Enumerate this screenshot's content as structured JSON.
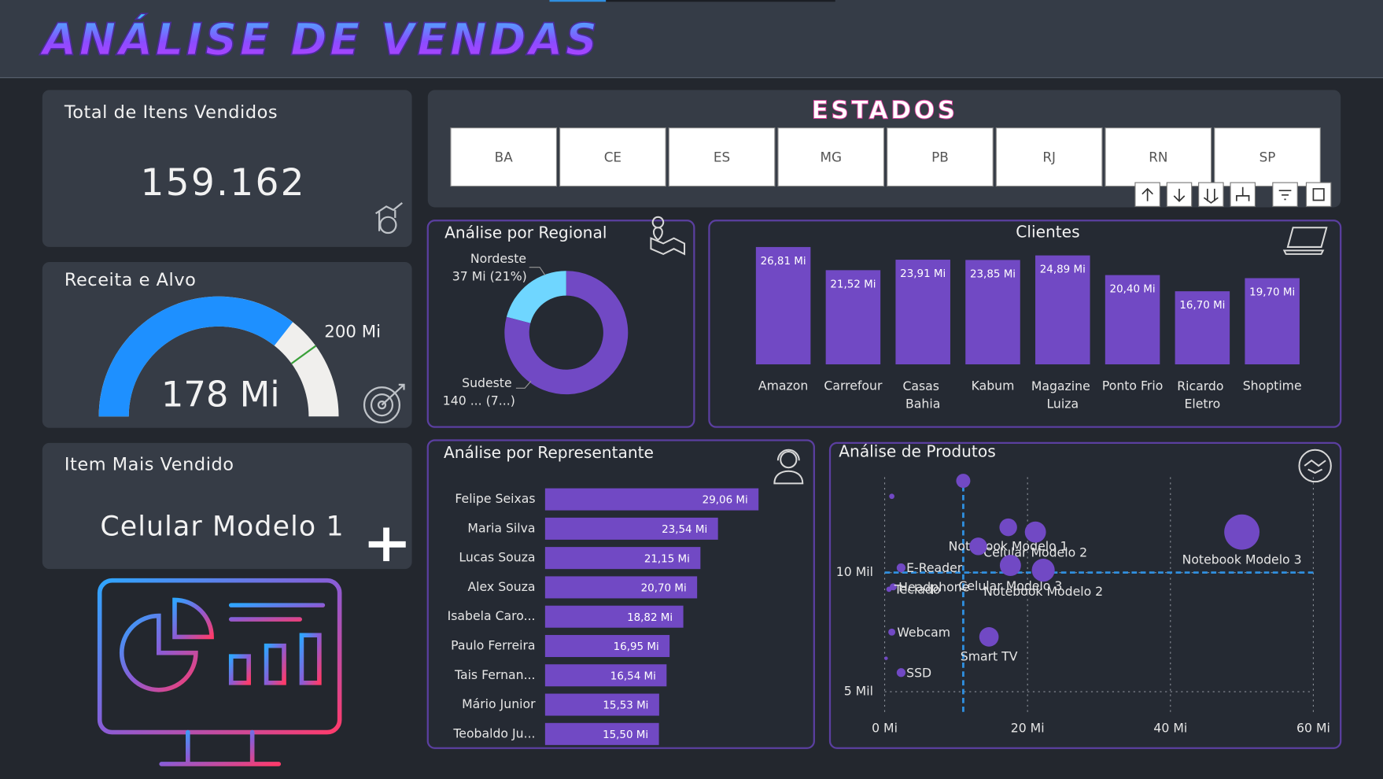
{
  "header": {
    "title": "ANÁLISE DE VENDAS"
  },
  "cards": {
    "total_items": {
      "label": "Total de Itens Vendidos",
      "value": "159.162"
    },
    "top_item": {
      "label": "Item Mais Vendido",
      "value": "Celular Modelo 1"
    }
  },
  "slicer": {
    "title": "ESTADOS",
    "items": [
      "BA",
      "CE",
      "ES",
      "MG",
      "PB",
      "RJ",
      "RN",
      "SP"
    ]
  },
  "chart_data": [
    {
      "type": "gauge",
      "title": "Receita e Alvo",
      "value": 178,
      "value_label": "178 Mi",
      "target": 200,
      "target_label": "200 Mi",
      "ylim": [
        0,
        250
      ],
      "color": "#1e90ff",
      "track_color": "#f0efed",
      "target_color": "#3aa03a"
    },
    {
      "type": "donut",
      "title": "Análise por Regional",
      "categories": [
        "Nordeste",
        "Sudeste"
      ],
      "values": [
        37,
        140
      ],
      "value_labels": [
        "37 Mi (21%)",
        "140 ... (7...)"
      ],
      "colors": [
        "#6fd6ff",
        "#7149c4"
      ]
    },
    {
      "type": "bar",
      "title": "Clientes",
      "categories": [
        "Amazon",
        "Carrefour",
        "Casas Bahia",
        "Kabum",
        "Magazine Luiza",
        "Ponto Frio",
        "Ricardo Eletro",
        "Shoptime"
      ],
      "values": [
        26.81,
        21.52,
        23.91,
        23.85,
        24.89,
        20.4,
        16.7,
        19.7
      ],
      "value_labels": [
        "26,81 Mi",
        "21,52 Mi",
        "23,91 Mi",
        "23,85 Mi",
        "24,89 Mi",
        "20,40 Mi",
        "16,70 Mi",
        "19,70 Mi"
      ],
      "color": "#7149c4"
    },
    {
      "type": "hbar",
      "title": "Análise por Representante",
      "categories": [
        "Felipe Seixas",
        "Maria Silva",
        "Lucas Souza",
        "Alex Souza",
        "Isabela Caro...",
        "Paulo Ferreira",
        "Tais Fernan...",
        "Mário Junior",
        "Teobaldo Ju..."
      ],
      "values": [
        29.06,
        23.54,
        21.15,
        20.7,
        18.82,
        16.95,
        16.54,
        15.53,
        15.5
      ],
      "value_labels": [
        "29,06 Mi",
        "23,54 Mi",
        "21,15 Mi",
        "20,70 Mi",
        "18,82 Mi",
        "16,95 Mi",
        "16,54 Mi",
        "15,53 Mi",
        "15,50 Mi"
      ],
      "color": "#7149c4"
    },
    {
      "type": "scatter",
      "title": "Análise de Produtos",
      "color": "#7149c4",
      "grid": true,
      "x": [
        11.0,
        1.0,
        17.3,
        21.1,
        50.0,
        13.1,
        17.6,
        22.2,
        2.3,
        1.2,
        0.6,
        1.0,
        14.6,
        2.3,
        0.2
      ],
      "y": [
        13.85,
        13.2,
        11.9,
        11.7,
        11.7,
        11.1,
        10.3,
        10.1,
        10.2,
        9.4,
        9.3,
        7.5,
        7.3,
        5.8,
        6.4
      ],
      "sizes": [
        8,
        3,
        10,
        12,
        20,
        10,
        12,
        13,
        5,
        4,
        3,
        4,
        11,
        5,
        2
      ],
      "labels": [
        null,
        null,
        "Notebook Modelo 1",
        "Celular Modelo 2",
        "Notebook Modelo 3",
        null,
        "Celular Modelo 3",
        "Notebook Modelo 2",
        "E-Reader",
        "Headphone",
        "Teclado",
        "Webcam",
        "Smart TV",
        "SSD",
        null
      ],
      "xlim": [
        0,
        60
      ],
      "ylim": [
        4,
        14
      ],
      "xticks": [
        {
          "value": 0,
          "label": "0 Mi"
        },
        {
          "value": 20,
          "label": "20 Mi"
        },
        {
          "value": 40,
          "label": "40 Mi"
        },
        {
          "value": 60,
          "label": "60 Mi"
        }
      ],
      "yticks": [
        {
          "value": 5,
          "label": "5 Mil"
        },
        {
          "value": 10,
          "label": "10 Mil"
        }
      ],
      "x_average": 11.0,
      "y_average": 10.0,
      "average_color": "#2f8fe0"
    }
  ]
}
